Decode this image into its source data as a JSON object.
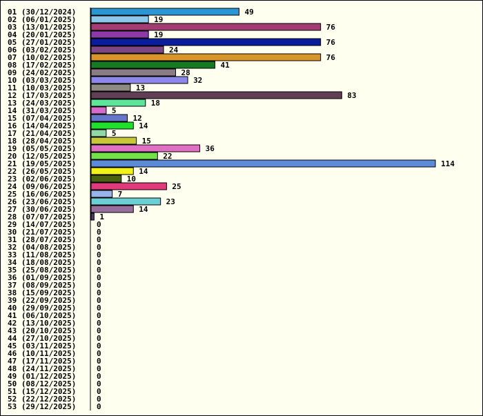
{
  "chart_data": {
    "type": "bar",
    "orientation": "horizontal",
    "title": "",
    "xlabel": "",
    "ylabel": "",
    "grid": false,
    "legend": "none",
    "xlim": [
      0,
      114
    ],
    "categories": [
      "01 (30/12/2024)",
      "02 (06/01/2025)",
      "03 (13/01/2025)",
      "04 (20/01/2025)",
      "05 (27/01/2025)",
      "06 (03/02/2025)",
      "07 (10/02/2025)",
      "08 (17/02/2025)",
      "09 (24/02/2025)",
      "10 (03/03/2025)",
      "11 (10/03/2025)",
      "12 (17/03/2025)",
      "13 (24/03/2025)",
      "14 (31/03/2025)",
      "15 (07/04/2025)",
      "16 (14/04/2025)",
      "17 (21/04/2025)",
      "18 (28/04/2025)",
      "19 (05/05/2025)",
      "20 (12/05/2025)",
      "21 (19/05/2025)",
      "22 (26/05/2025)",
      "23 (02/06/2025)",
      "24 (09/06/2025)",
      "25 (16/06/2025)",
      "26 (23/06/2025)",
      "27 (30/06/2025)",
      "28 (07/07/2025)",
      "29 (14/07/2025)",
      "30 (21/07/2025)",
      "31 (28/07/2025)",
      "32 (04/08/2025)",
      "33 (11/08/2025)",
      "34 (18/08/2025)",
      "35 (25/08/2025)",
      "36 (01/09/2025)",
      "37 (08/09/2025)",
      "38 (15/09/2025)",
      "39 (22/09/2025)",
      "40 (29/09/2025)",
      "41 (06/10/2025)",
      "42 (13/10/2025)",
      "43 (20/10/2025)",
      "44 (27/10/2025)",
      "45 (03/11/2025)",
      "46 (10/11/2025)",
      "47 (17/11/2025)",
      "48 (24/11/2025)",
      "49 (01/12/2025)",
      "50 (08/12/2025)",
      "51 (15/12/2025)",
      "52 (22/12/2025)",
      "53 (29/12/2025)"
    ],
    "values": [
      49,
      19,
      76,
      19,
      76,
      24,
      76,
      41,
      28,
      32,
      13,
      83,
      18,
      5,
      12,
      14,
      5,
      15,
      36,
      22,
      114,
      14,
      10,
      25,
      7,
      23,
      14,
      1,
      0,
      0,
      0,
      0,
      0,
      0,
      0,
      0,
      0,
      0,
      0,
      0,
      0,
      0,
      0,
      0,
      0,
      0,
      0,
      0,
      0,
      0,
      0,
      0,
      0
    ],
    "colors": [
      "#2a96d4",
      "#8ec7ec",
      "#a23c72",
      "#8b3aa8",
      "#0a1d9c",
      "#7c4783",
      "#d8952b",
      "#157a21",
      "#8a7c84",
      "#8e87ea",
      "#8c8a82",
      "#603f55",
      "#5de59a",
      "#d46ccc",
      "#6676c9",
      "#1fe02a",
      "#90d8a4",
      "#c6c83a",
      "#e070c4",
      "#72e048",
      "#5b8ad8",
      "#f2f21a",
      "#4a620f",
      "#e03a7a",
      "#97b4ea",
      "#6ccfd6",
      "#986e9e",
      "#4e3c6c"
    ]
  }
}
